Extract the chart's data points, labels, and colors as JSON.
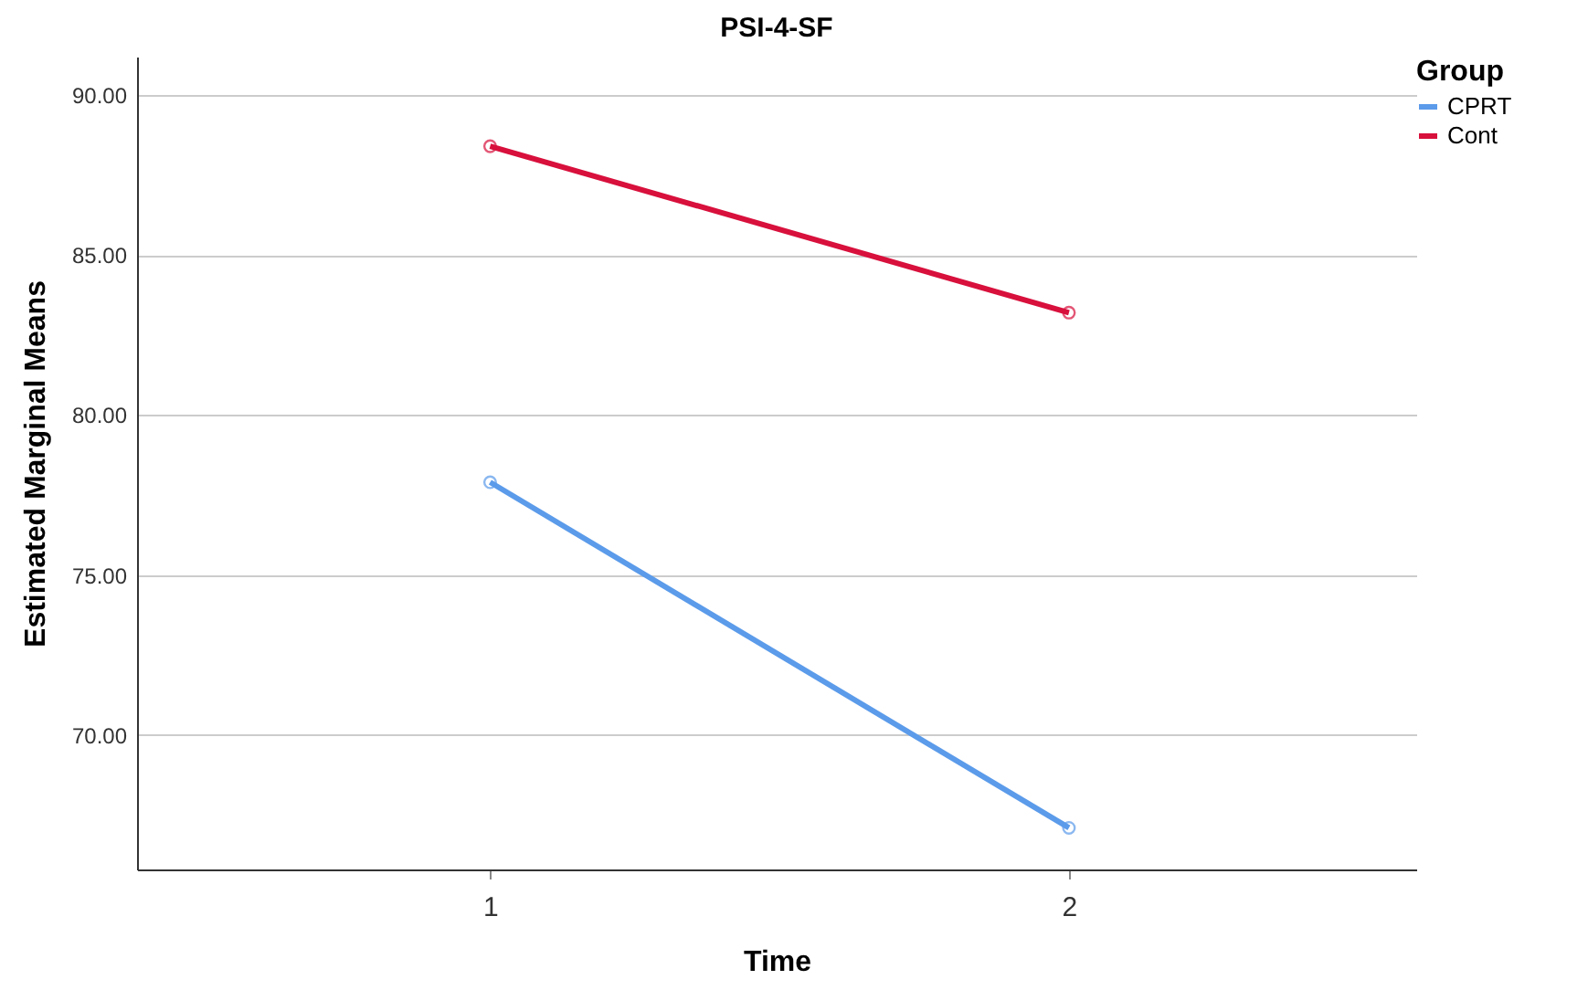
{
  "chart_data": {
    "type": "line",
    "title": "PSI-4-SF",
    "xlabel": "Time",
    "ylabel": "Estimated Marginal Means",
    "legend_title": "Group",
    "x": [
      1,
      2
    ],
    "xlim": [
      0.39,
      2.6
    ],
    "xticks": [
      1,
      2
    ],
    "series": [
      {
        "name": "CPRT",
        "color": "#5b9bea",
        "values": [
          77.9,
          67.1
        ]
      },
      {
        "name": "Cont",
        "color": "#d8103c",
        "values": [
          88.4,
          83.2
        ]
      }
    ],
    "ylim": [
      65.8,
      91.2
    ],
    "yticks": [
      {
        "value": 70,
        "label": "70.00"
      },
      {
        "value": 75,
        "label": "75.00"
      },
      {
        "value": 80,
        "label": "80.00"
      },
      {
        "value": 85,
        "label": "85.00"
      },
      {
        "value": 90,
        "label": "90.00"
      }
    ],
    "grid": "y",
    "legend": "top right",
    "marker": "circle",
    "line_style": "solid"
  }
}
